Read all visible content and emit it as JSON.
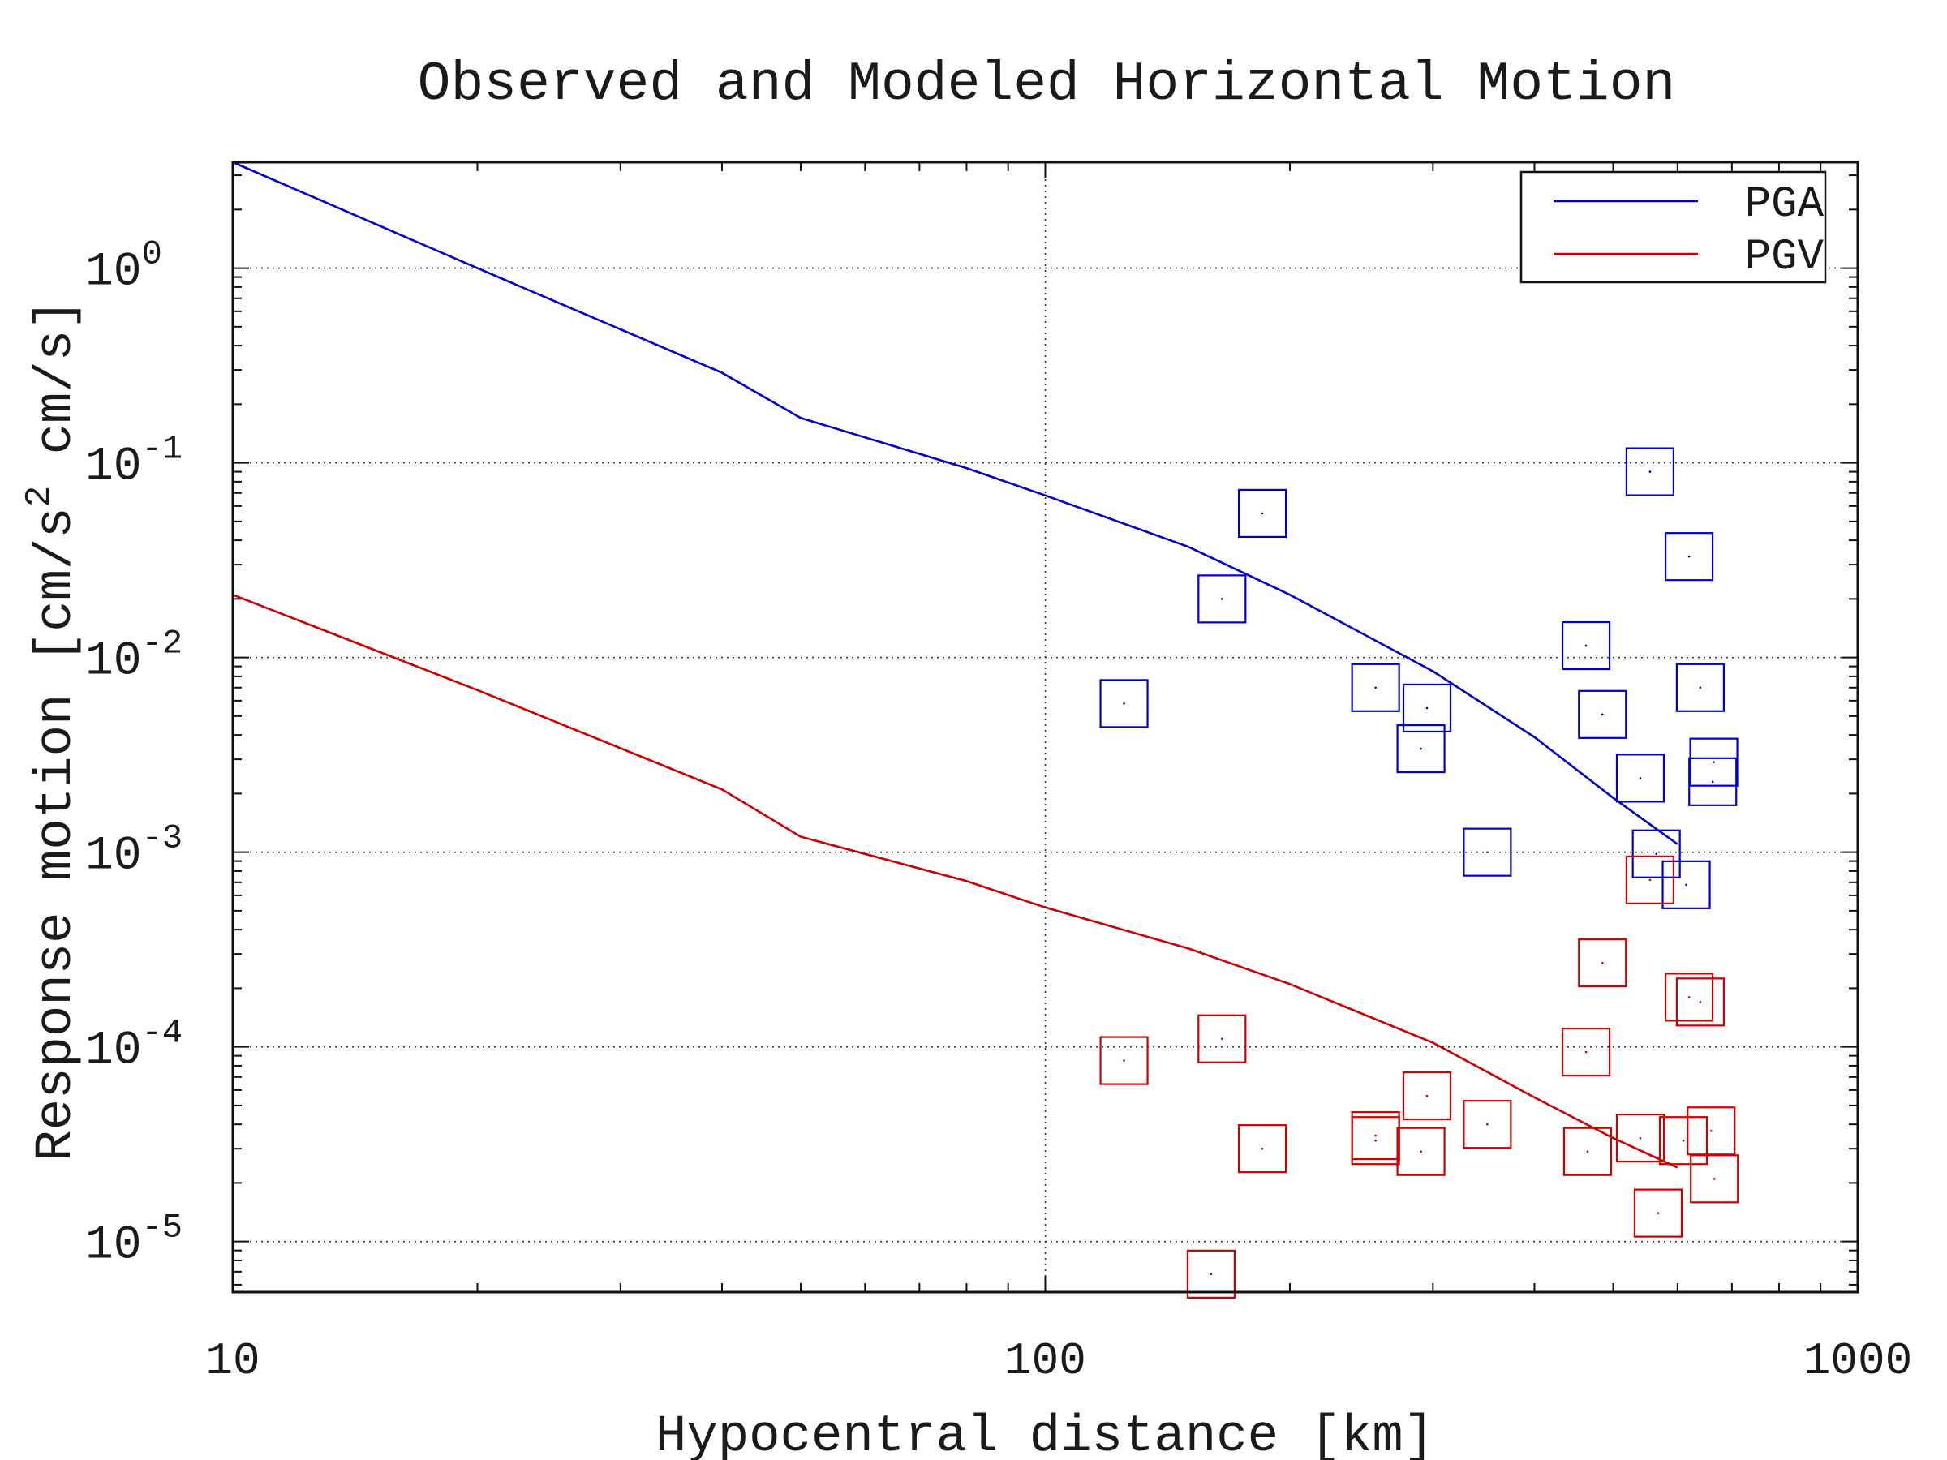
{
  "chart_data": {
    "type": "scatter",
    "title": "Observed and Modeled Horizontal Motion",
    "xlabel": "Hypocentral distance [km]",
    "ylabel": "Response motion [cm/s2  cm/s]",
    "xscale": "log",
    "yscale": "log",
    "xlim": [
      10,
      1000
    ],
    "ylim": [
      5.5e-06,
      3.5
    ],
    "x_ticks": [
      {
        "value": 10,
        "label": "10"
      },
      {
        "value": 100,
        "label": "100"
      },
      {
        "value": 1000,
        "label": "1000"
      }
    ],
    "y_ticks": [
      {
        "value": 1,
        "mantissa": "10",
        "exponent": "0"
      },
      {
        "value": 0.1,
        "mantissa": "10",
        "exponent": "-1"
      },
      {
        "value": 0.01,
        "mantissa": "10",
        "exponent": "-2"
      },
      {
        "value": 0.001,
        "mantissa": "10",
        "exponent": "-3"
      },
      {
        "value": 0.0001,
        "mantissa": "10",
        "exponent": "-4"
      },
      {
        "value": 1e-05,
        "mantissa": "10",
        "exponent": "-5"
      }
    ],
    "grid": true,
    "legend_position": "top-right",
    "series": [
      {
        "name": "PGA",
        "kind": "line",
        "color": "#0000cc",
        "x": [
          10,
          20,
          40,
          50,
          80,
          100,
          150,
          200,
          300,
          400,
          500,
          600
        ],
        "y": [
          3.5,
          1.0,
          0.29,
          0.17,
          0.094,
          0.068,
          0.037,
          0.021,
          0.0085,
          0.0039,
          0.0019,
          0.0011
        ]
      },
      {
        "name": "PGV",
        "kind": "line",
        "color": "#cc0000",
        "x": [
          10,
          20,
          40,
          50,
          80,
          100,
          150,
          200,
          300,
          400,
          500,
          600
        ],
        "y": [
          0.021,
          0.0068,
          0.0021,
          0.0012,
          0.00071,
          0.00052,
          0.00032,
          0.00021,
          0.000105,
          5.5e-05,
          3.4e-05,
          2.4e-05
        ]
      },
      {
        "kind": "scatter",
        "marker": "square",
        "color": "#0000cc",
        "x": [
          125,
          165,
          185,
          255,
          295,
          290,
          350,
          463,
          485,
          540,
          555,
          565,
          615,
          620,
          640,
          663,
          665
        ],
        "y": [
          0.0058,
          0.02,
          0.055,
          0.007,
          0.0055,
          0.0034,
          0.001,
          0.0115,
          0.0051,
          0.0024,
          0.09,
          0.00098,
          0.00068,
          0.033,
          0.007,
          0.0023,
          0.0029
        ]
      },
      {
        "kind": "scatter",
        "marker": "square",
        "color": "#cc0000",
        "x": [
          125,
          160,
          165,
          185,
          255,
          255,
          290,
          295,
          350,
          463,
          465,
          485,
          540,
          555,
          568,
          610,
          620,
          640,
          660,
          666
        ],
        "y": [
          8.5e-05,
          6.8e-06,
          0.00011,
          3e-05,
          3.3e-05,
          3.5e-05,
          2.9e-05,
          5.6e-05,
          4e-05,
          9.4e-05,
          2.9e-05,
          0.00027,
          3.4e-05,
          0.00072,
          1.4e-05,
          3.3e-05,
          0.00018,
          0.00017,
          3.7e-05,
          2.1e-05
        ]
      }
    ]
  }
}
